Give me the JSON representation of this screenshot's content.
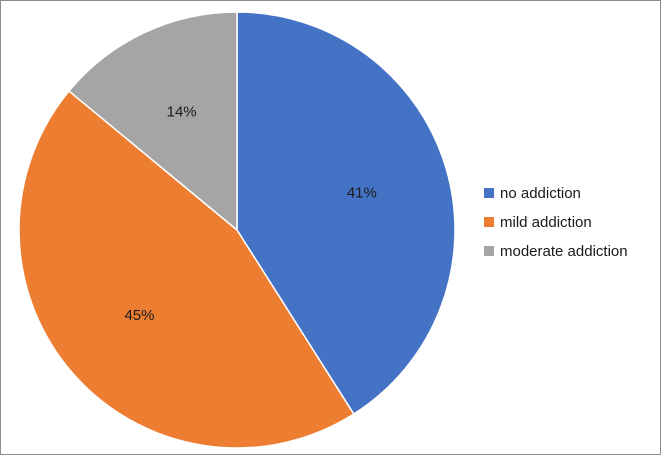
{
  "chart_data": {
    "type": "pie",
    "title": "",
    "categories": [
      "no addiction",
      "mild addiction",
      "moderate addiction"
    ],
    "values": [
      41,
      45,
      14
    ],
    "labels": [
      "41%",
      "45%",
      "14%"
    ],
    "colors": [
      "#4472c4",
      "#ed7d31",
      "#a5a5a5"
    ],
    "start_angle_deg": 0,
    "direction": "clockwise",
    "legend_position": "right",
    "legend": [
      {
        "label": "no addiction",
        "color": "#4472c4"
      },
      {
        "label": "mild addiction",
        "color": "#ed7d31"
      },
      {
        "label": "moderate addiction",
        "color": "#a5a5a5"
      }
    ]
  }
}
